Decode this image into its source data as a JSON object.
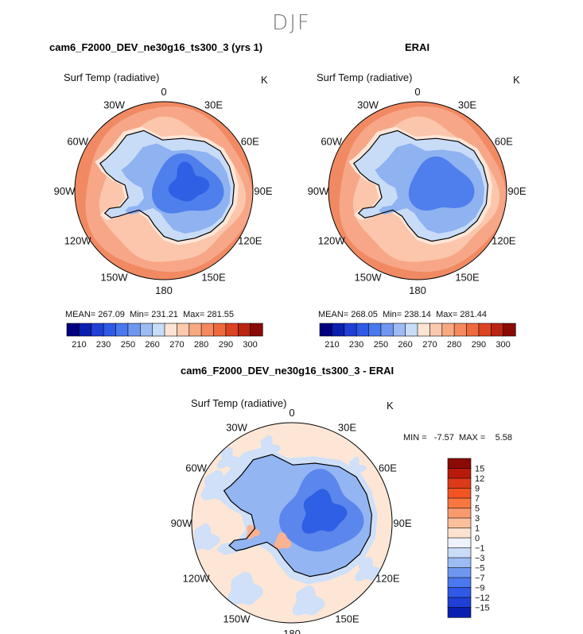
{
  "title": "DJF",
  "panels": [
    {
      "id": "model",
      "header": "cam6_F2000_DEV_ne30g16_ts300_3 (yrs 1)",
      "variable": "Surf Temp (radiative)",
      "units": "K",
      "stats": {
        "mean_label": "MEAN=",
        "mean": "267.09",
        "min_label": "Min=",
        "min": "231.21",
        "max_label": "Max=",
        "max": "281.55"
      }
    },
    {
      "id": "obs",
      "header": "ERAI",
      "variable": "Surf Temp (radiative)",
      "units": "K",
      "stats": {
        "mean_label": "MEAN=",
        "mean": "268.05",
        "min_label": "Min=",
        "min": "238.14",
        "max_label": "Max=",
        "max": "281.44"
      }
    }
  ],
  "difference": {
    "header": "cam6_F2000_DEV_ne30g16_ts300_3 - ERAI",
    "variable": "Surf Temp (radiative)",
    "units": "K",
    "min_label": "MIN =",
    "min": "-7.57",
    "max_label": "MAX =",
    "max": "5.58"
  },
  "longitude_labels": [
    "0",
    "30E",
    "60E",
    "90E",
    "120E",
    "150E",
    "180",
    "150W",
    "120W",
    "90W",
    "60W",
    "30W"
  ],
  "longitude_angles_deg": [
    0,
    30,
    60,
    90,
    120,
    150,
    180,
    210,
    240,
    270,
    300,
    330
  ],
  "abs_colorbar": {
    "tick_labels": [
      "210",
      "230",
      "250",
      "260",
      "270",
      "280",
      "290",
      "300"
    ],
    "colors": [
      "#000080",
      "#0a1fb0",
      "#1f3fd6",
      "#2f59e6",
      "#4a78ee",
      "#6f97f0",
      "#9dbcf4",
      "#c9dcf8",
      "#fde4d4",
      "#fbc9ad",
      "#f8a982",
      "#f5895e",
      "#ee6a3c",
      "#dc4322",
      "#bb2412",
      "#8a0a05"
    ]
  },
  "diff_colorbar": {
    "tick_labels": [
      "15",
      "12",
      "9",
      "7",
      "5",
      "3",
      "1",
      "0",
      "−1",
      "−3",
      "−5",
      "−7",
      "−9",
      "−12",
      "−15"
    ],
    "colors": [
      "#8a0a05",
      "#b81a0c",
      "#dc3a18",
      "#f25424",
      "#f7773f",
      "#f99a6e",
      "#fbbf9c",
      "#fde2cf",
      "#eef3fb",
      "#c9dcf8",
      "#9dbcf4",
      "#6f97f0",
      "#4a78ee",
      "#2f59e6",
      "#1f3fd6",
      "#0a1fb0"
    ]
  },
  "map_colors": {
    "ocean_outer": "#f18a62",
    "ocean_mid": "#f7a787",
    "ocean_inner": "#fbc6ac",
    "ice_edge": "#fde6d7",
    "coast_light": "#c8dcf7",
    "ice_mid": "#8fb2f1",
    "ice_deep": "#4f7fec",
    "ice_core": "#2f5fe4",
    "diff_bg": "#fde6d6",
    "diff_light": "#cfe0f8",
    "diff_mid": "#93b5f2",
    "diff_deep": "#5b86ec",
    "diff_core": "#2f5fe4",
    "diff_warm": "#f9b292"
  }
}
